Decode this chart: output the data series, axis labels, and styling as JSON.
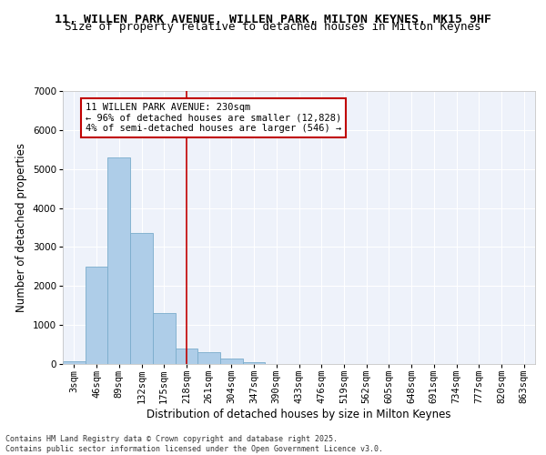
{
  "title_line1": "11, WILLEN PARK AVENUE, WILLEN PARK, MILTON KEYNES, MK15 9HF",
  "title_line2": "Size of property relative to detached houses in Milton Keynes",
  "xlabel": "Distribution of detached houses by size in Milton Keynes",
  "ylabel": "Number of detached properties",
  "categories": [
    "3sqm",
    "46sqm",
    "89sqm",
    "132sqm",
    "175sqm",
    "218sqm",
    "261sqm",
    "304sqm",
    "347sqm",
    "390sqm",
    "433sqm",
    "476sqm",
    "519sqm",
    "562sqm",
    "605sqm",
    "648sqm",
    "691sqm",
    "734sqm",
    "777sqm",
    "820sqm",
    "863sqm"
  ],
  "values": [
    60,
    2500,
    5300,
    3350,
    1300,
    400,
    300,
    130,
    50,
    0,
    0,
    0,
    0,
    0,
    0,
    0,
    0,
    0,
    0,
    0,
    0
  ],
  "bar_color": "#aecde8",
  "bar_edge_color": "#7aaccc",
  "vline_index": 5,
  "vline_color": "#c00000",
  "annotation_text": "11 WILLEN PARK AVENUE: 230sqm\n← 96% of detached houses are smaller (12,828)\n4% of semi-detached houses are larger (546) →",
  "annotation_box_color": "#c00000",
  "background_color": "#eef2fa",
  "ylim": [
    0,
    7000
  ],
  "yticks": [
    0,
    1000,
    2000,
    3000,
    4000,
    5000,
    6000,
    7000
  ],
  "footer": "Contains HM Land Registry data © Crown copyright and database right 2025.\nContains public sector information licensed under the Open Government Licence v3.0.",
  "title_fontsize": 9.5,
  "subtitle_fontsize": 9,
  "axis_label_fontsize": 8.5,
  "tick_fontsize": 7.5,
  "annotation_fontsize": 7.5,
  "footer_fontsize": 6
}
